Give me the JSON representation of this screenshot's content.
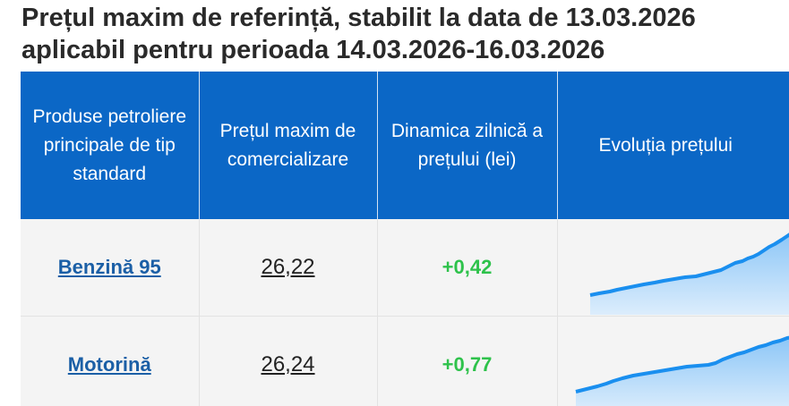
{
  "title_line1": "Prețul maxim de referință, stabilit la data de 13.03.2026",
  "title_line2": "aplicabil pentru perioada 14.03.2026-16.03.2026",
  "table": {
    "headers": [
      "Produse petroliere principale de tip standard",
      "Prețul maxim de comercializare",
      "Dinamica zilnică a prețului (lei)",
      "Evoluția prețului"
    ],
    "rows": [
      {
        "product": "Benzină 95",
        "price": "26,22",
        "change": "+0,42"
      },
      {
        "product": "Motorină",
        "price": "26,24",
        "change": "+0,77"
      }
    ]
  },
  "colors": {
    "header_bg": "#0b67c6",
    "link": "#1b5fa6",
    "positive_change": "#2ec24b",
    "sparkline": "#1a8fef"
  }
}
